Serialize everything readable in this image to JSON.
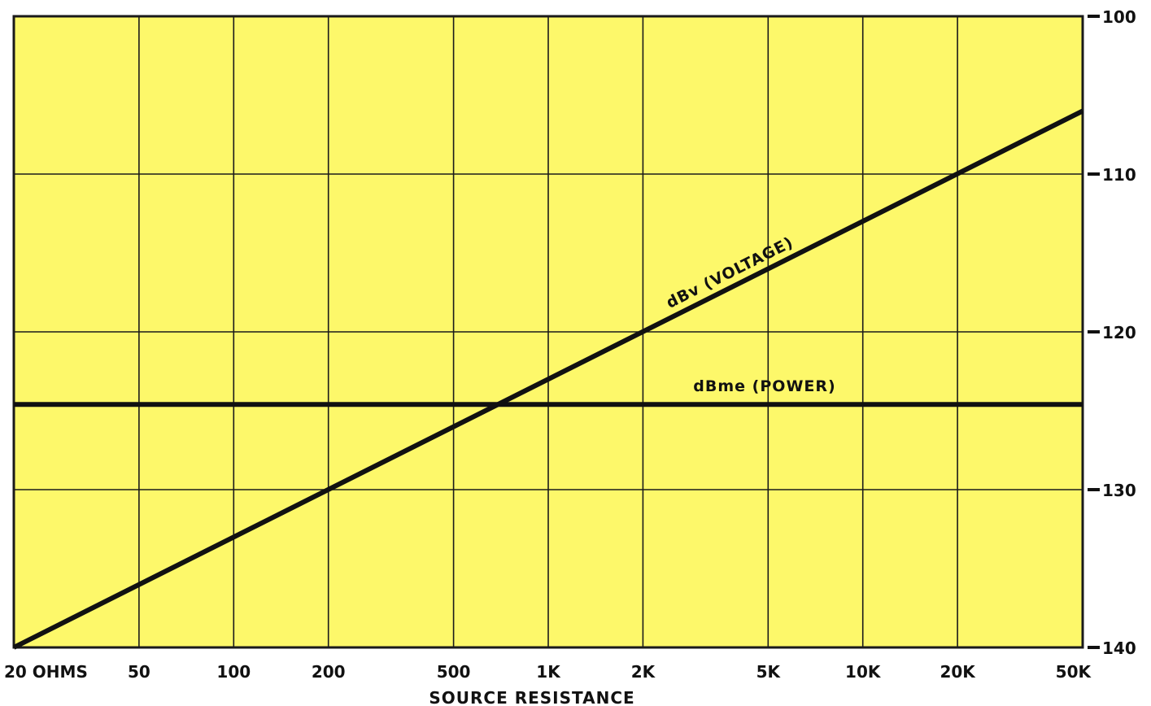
{
  "chart_data": {
    "type": "line",
    "xlabel": "SOURCE RESISTANCE",
    "x_scale": "log",
    "xlim": [
      20,
      50000
    ],
    "ylim": [
      -140,
      -100
    ],
    "grid": true,
    "x_ticks": [
      {
        "value": 20,
        "label": "20 OHMS"
      },
      {
        "value": 50,
        "label": "50"
      },
      {
        "value": 100,
        "label": "100"
      },
      {
        "value": 200,
        "label": "200"
      },
      {
        "value": 500,
        "label": "500"
      },
      {
        "value": 1000,
        "label": "1K"
      },
      {
        "value": 2000,
        "label": "2K"
      },
      {
        "value": 5000,
        "label": "5K"
      },
      {
        "value": 10000,
        "label": "10K"
      },
      {
        "value": 20000,
        "label": "20K"
      },
      {
        "value": 50000,
        "label": "50K"
      }
    ],
    "y_ticks": [
      {
        "value": -100,
        "label": "-100"
      },
      {
        "value": -110,
        "label": "-110"
      },
      {
        "value": -120,
        "label": "-120"
      },
      {
        "value": -130,
        "label": "-130"
      },
      {
        "value": -140,
        "label": "-140"
      }
    ],
    "series": [
      {
        "name": "dBv (VOLTAGE)",
        "x": [
          20,
          50000
        ],
        "y": [
          -140,
          -106
        ]
      },
      {
        "name": "dBme (POWER)",
        "x": [
          20,
          50000
        ],
        "y": [
          -124.6,
          -124.6
        ]
      }
    ],
    "colors": {
      "background": "#fdf86a",
      "line": "#111111",
      "grid": "#1a1a1a"
    }
  }
}
